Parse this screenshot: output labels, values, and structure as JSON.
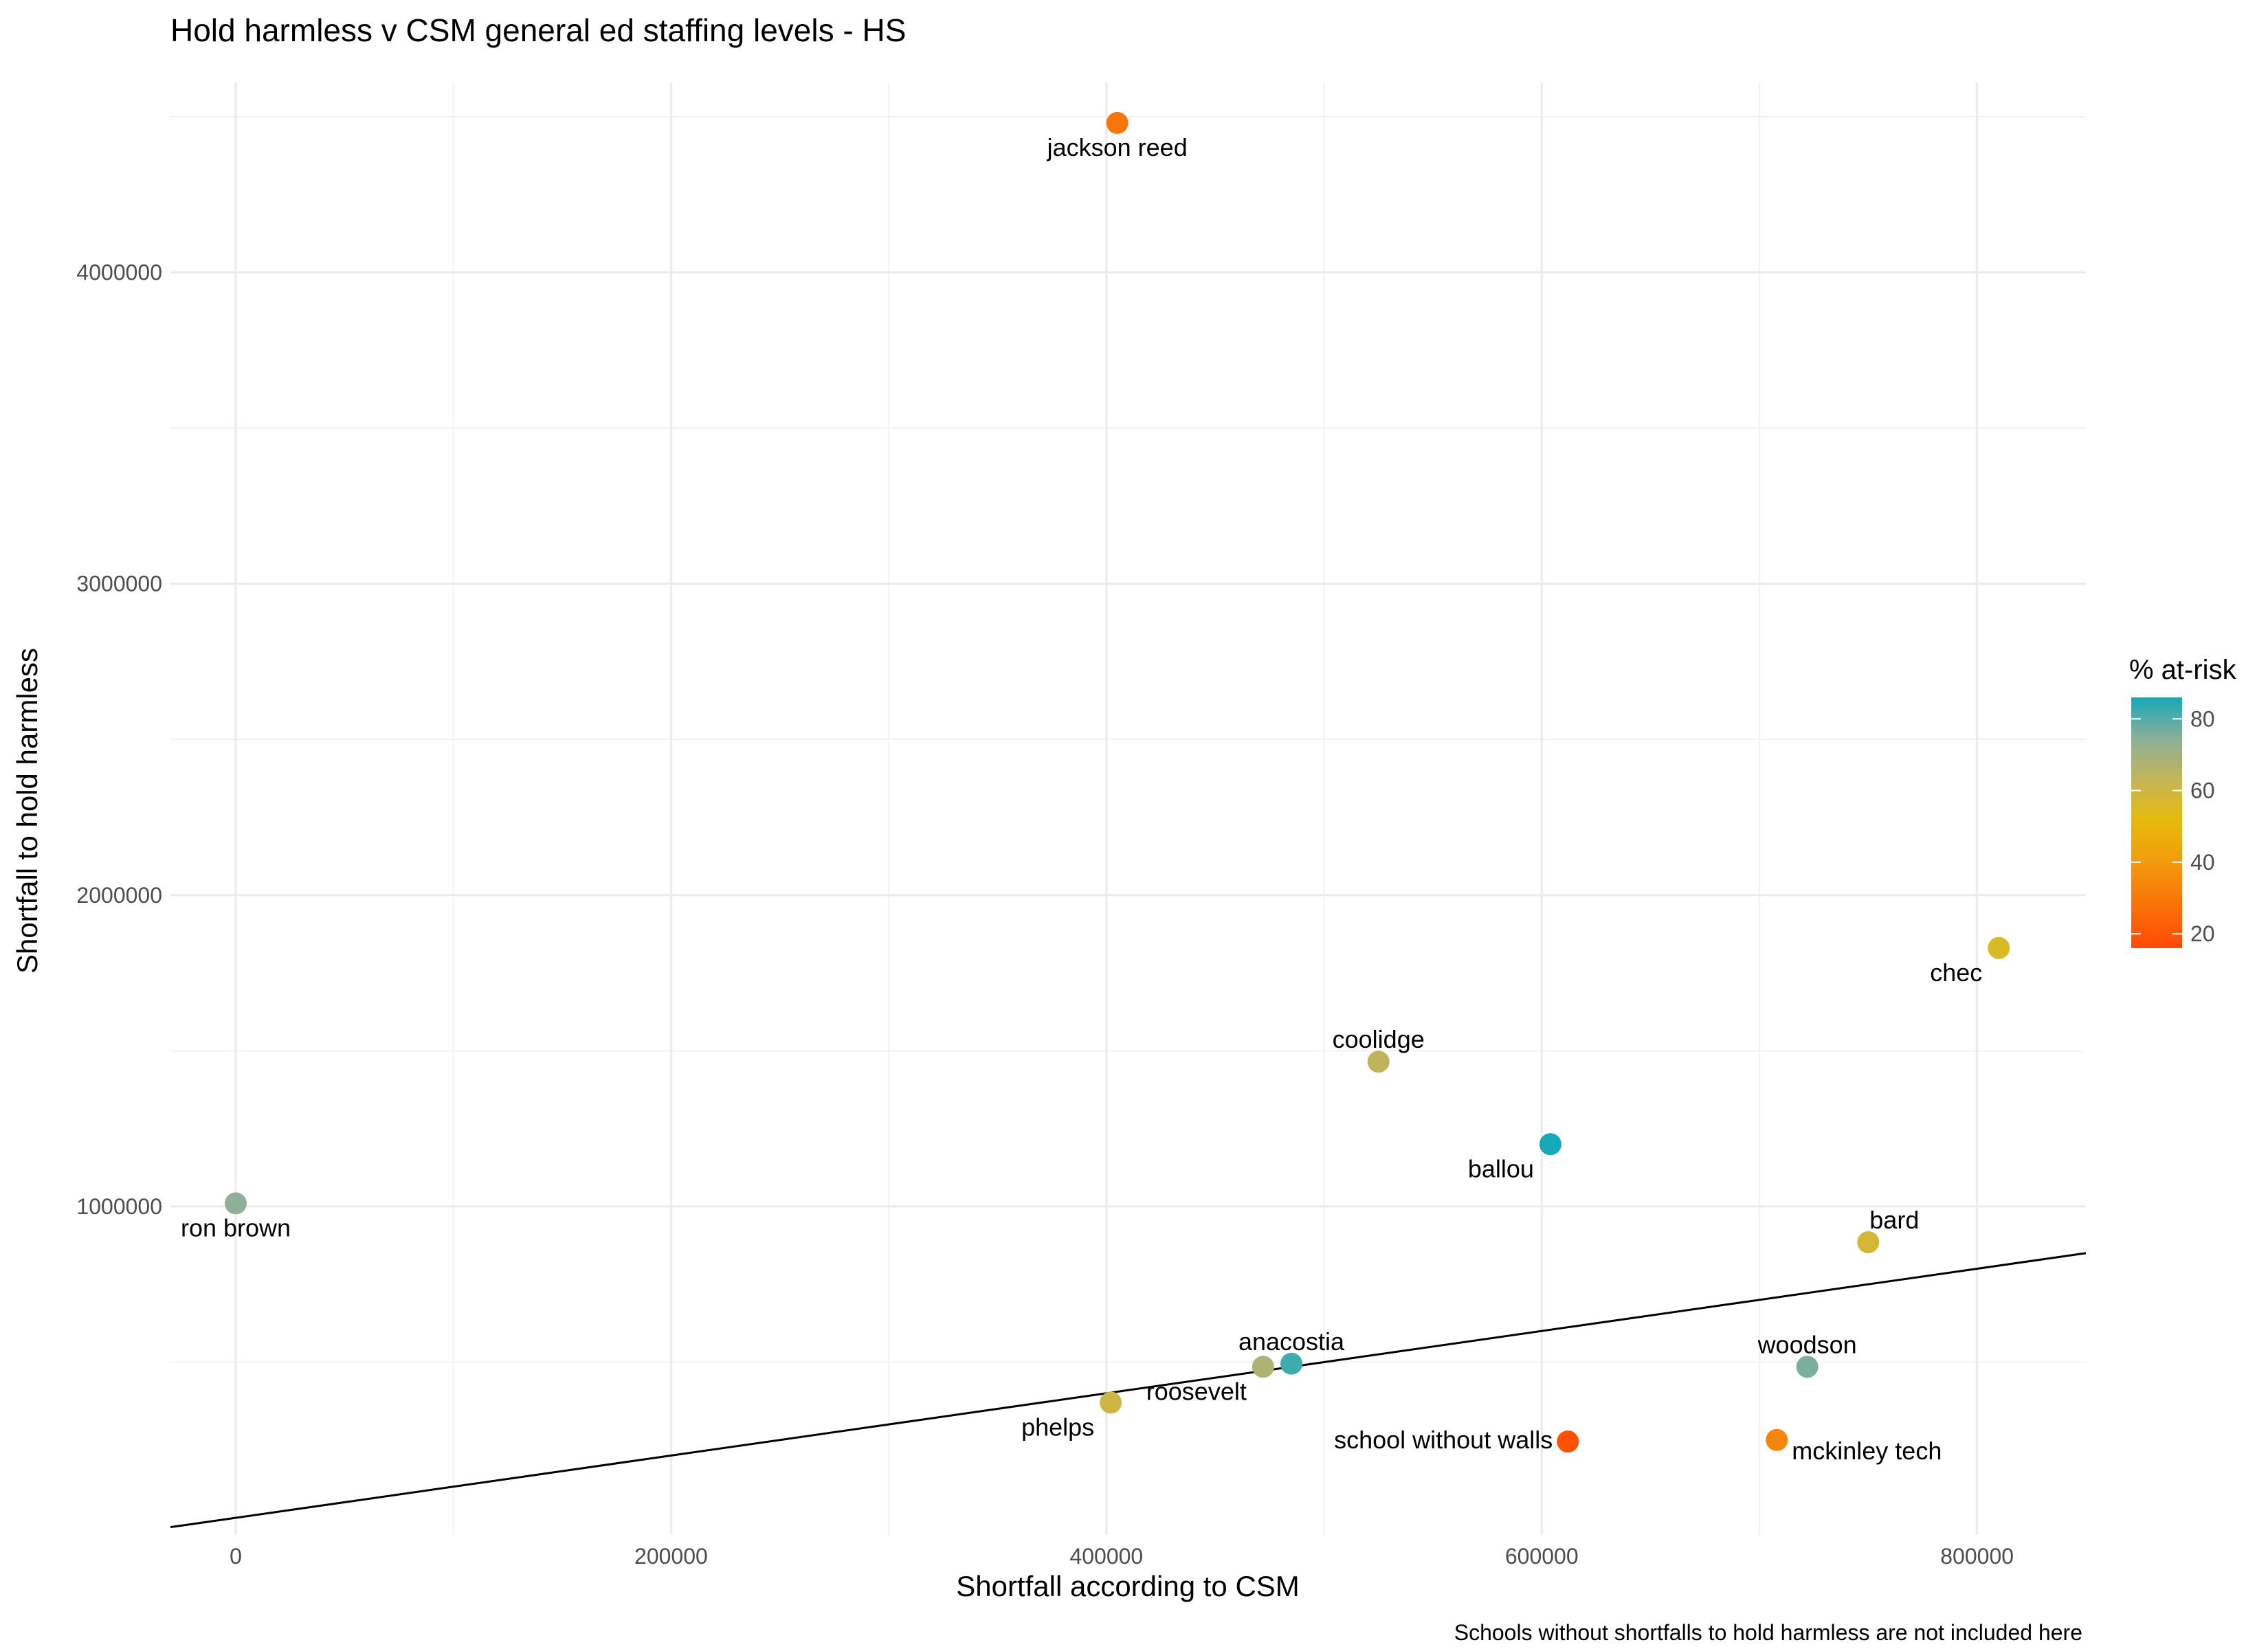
{
  "chart_data": {
    "type": "scatter",
    "title": "Hold harmless v CSM general ed staffing levels - HS",
    "xlabel": "Shortfall according to CSM",
    "ylabel": "Shortfall to hold harmless",
    "caption": "Schools without shortfalls to hold harmless are not included here",
    "xlim": [
      -30000,
      850000
    ],
    "ylim": [
      -55000,
      4610000
    ],
    "x_ticks": [
      0,
      200000,
      400000,
      600000,
      800000
    ],
    "y_ticks": [
      1000000,
      2000000,
      3000000,
      4000000
    ],
    "x_tick_labels": [
      "0",
      "200000",
      "400000",
      "600000",
      "800000"
    ],
    "y_tick_labels": [
      "1000000",
      "2000000",
      "3000000",
      "4000000"
    ],
    "grid": true,
    "reference_line": {
      "type": "identity",
      "slope": 1,
      "intercept": 0
    },
    "legend": {
      "title": "% at-risk",
      "type": "colorbar",
      "position": "right",
      "range": [
        16,
        86
      ],
      "ticks": [
        20,
        40,
        60,
        80
      ],
      "tick_labels": [
        "20",
        "40",
        "60",
        "80"
      ],
      "color_stops": [
        {
          "value": 16,
          "color": "#FF4A05"
        },
        {
          "value": 40,
          "color": "#F29A0E"
        },
        {
          "value": 52,
          "color": "#E6BB0C"
        },
        {
          "value": 62,
          "color": "#C9B550"
        },
        {
          "value": 74,
          "color": "#8FB096"
        },
        {
          "value": 86,
          "color": "#15A9BA"
        }
      ]
    },
    "points": [
      {
        "label": "jackson reed",
        "x": 405000,
        "y": 4480000,
        "at_risk": 29,
        "label_pos": "below"
      },
      {
        "label": "chec",
        "x": 810000,
        "y": 1830000,
        "at_risk": 56,
        "label_pos": "below-left"
      },
      {
        "label": "coolidge",
        "x": 525000,
        "y": 1465000,
        "at_risk": 64,
        "label_pos": "above"
      },
      {
        "label": "ballou",
        "x": 604000,
        "y": 1200000,
        "at_risk": 86,
        "label_pos": "below-left"
      },
      {
        "label": "ron brown",
        "x": 0,
        "y": 1010000,
        "at_risk": 74,
        "label_pos": "below"
      },
      {
        "label": "bard",
        "x": 750000,
        "y": 885000,
        "at_risk": 58,
        "label_pos": "above-right"
      },
      {
        "label": "anacostia",
        "x": 485000,
        "y": 495000,
        "at_risk": 82,
        "label_pos": "above"
      },
      {
        "label": "roosevelt",
        "x": 472000,
        "y": 485000,
        "at_risk": 68,
        "label_pos": "below-left"
      },
      {
        "label": "woodson",
        "x": 722000,
        "y": 485000,
        "at_risk": 76,
        "label_pos": "above"
      },
      {
        "label": "phelps",
        "x": 402000,
        "y": 370000,
        "at_risk": 60,
        "label_pos": "below-left"
      },
      {
        "label": "school without walls",
        "x": 612000,
        "y": 245000,
        "at_risk": 18,
        "label_pos": "left"
      },
      {
        "label": "mckinley tech",
        "x": 708000,
        "y": 250000,
        "at_risk": 34,
        "label_pos": "below-right"
      }
    ]
  }
}
